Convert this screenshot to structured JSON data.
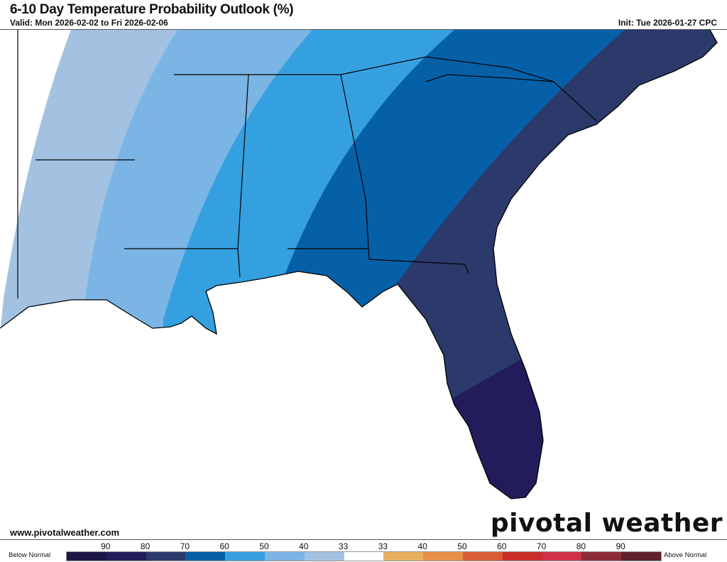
{
  "header": {
    "title": "6-10 Day Temperature Probability Outlook (%)",
    "valid": "Valid: Mon 2026-02-02 to Fri 2026-02-06",
    "init": "Init: Tue 2026-01-27 CPC"
  },
  "footer": {
    "url": "www.pivotalweather.com",
    "logo_text": "pivotal weather"
  },
  "legend": {
    "below_label": "Below Normal",
    "above_label": "Above Normal",
    "tick_labels": [
      "90",
      "80",
      "70",
      "60",
      "50",
      "40",
      "33",
      "33",
      "40",
      "50",
      "60",
      "70",
      "80",
      "90"
    ],
    "colors": [
      "#1c1646",
      "#221d5a",
      "#2b3a6b",
      "#0560a8",
      "#35a0e0",
      "#7ab5e5",
      "#a3c2e2",
      "#ffffff",
      "#e8b060",
      "#e89048",
      "#d85c38",
      "#c83028",
      "#d03048",
      "#8c2c38",
      "#60202a"
    ]
  },
  "map": {
    "category": "Below Normal",
    "band_levels": [
      "33-40",
      "40-50",
      "50-60",
      "60-70",
      "70-80",
      "80-90"
    ]
  }
}
